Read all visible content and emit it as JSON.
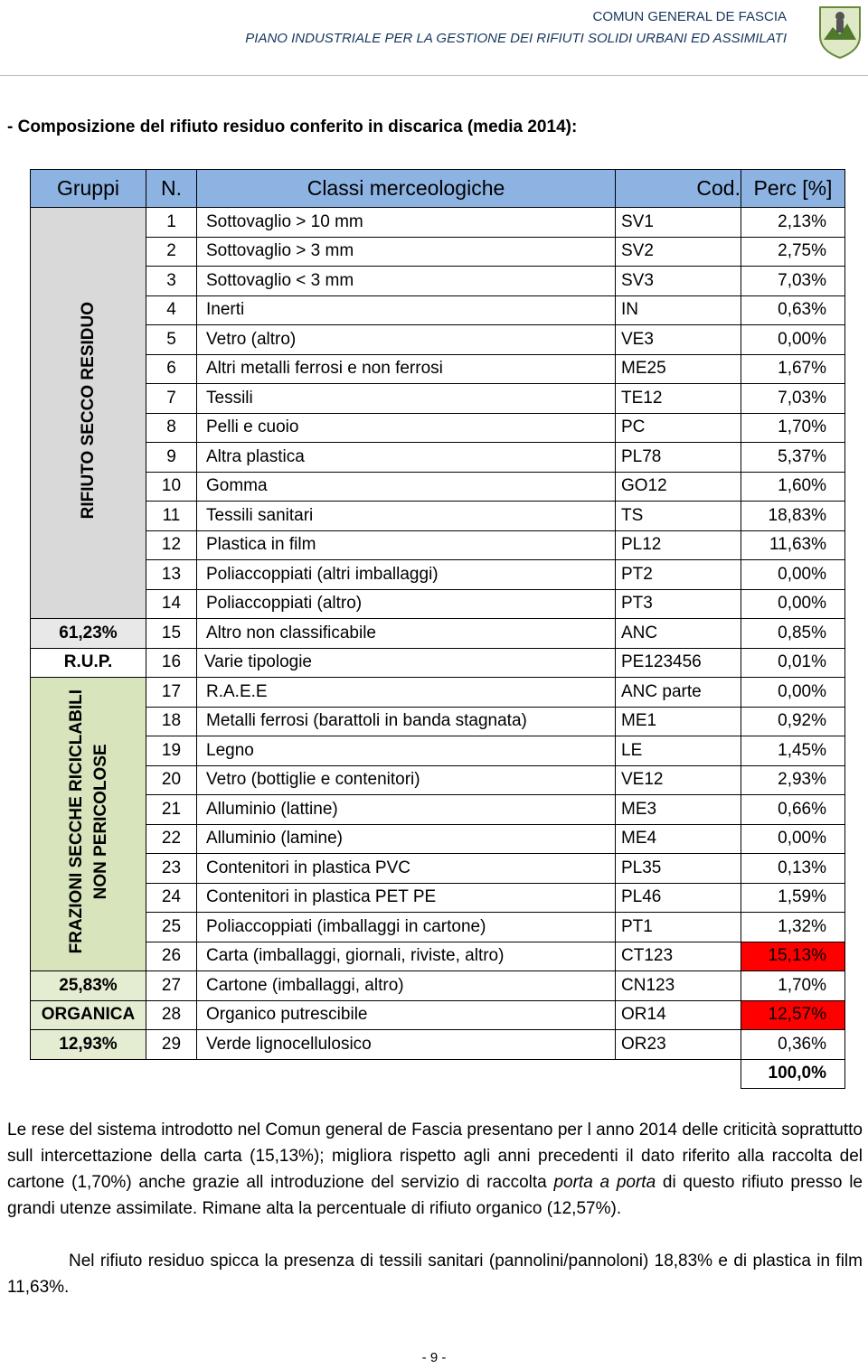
{
  "header": {
    "org": "COMUN GENERAL DE FASCIA",
    "plan": "PIANO INDUSTRIALE PER LA GESTIONE DEI RIFIUTI SOLIDI URBANI ED ASSIMILATI"
  },
  "section_title": "- Composizione del rifiuto residuo conferito in discarica (media 2014):",
  "table": {
    "columns": [
      "Gruppi",
      "N.",
      "Classi merceologiche",
      "Cod.",
      "Perc [%]"
    ],
    "groups": [
      {
        "label": [
          "RIFIUTO SECCO RESIDUO"
        ],
        "vertical": true,
        "color": "#d9d9d9",
        "rows": [
          {
            "n": "1",
            "name": "Sottovaglio > 10 mm",
            "code": "SV1",
            "perc": "2,13%"
          },
          {
            "n": "2",
            "name": "Sottovaglio > 3 mm",
            "code": "SV2",
            "perc": "2,75%"
          },
          {
            "n": "3",
            "name": "Sottovaglio < 3 mm",
            "code": "SV3",
            "perc": "7,03%"
          },
          {
            "n": "4",
            "name": "Inerti",
            "code": "IN",
            "perc": "0,63%"
          },
          {
            "n": "5",
            "name": "Vetro (altro)",
            "code": "VE3",
            "perc": "0,00%"
          },
          {
            "n": "6",
            "name": "Altri metalli ferrosi e non ferrosi",
            "code": "ME25",
            "perc": "1,67%"
          },
          {
            "n": "7",
            "name": "Tessili",
            "code": "TE12",
            "perc": "7,03%"
          },
          {
            "n": "8",
            "name": "Pelli e cuoio",
            "code": "PC",
            "perc": "1,70%"
          },
          {
            "n": "9",
            "name": "Altra plastica",
            "code": "PL78",
            "perc": "5,37%"
          },
          {
            "n": "10",
            "name": "Gomma",
            "code": "GO12",
            "perc": "1,60%"
          },
          {
            "n": "11",
            "name": "Tessili sanitari",
            "code": "TS",
            "perc": "18,83%"
          },
          {
            "n": "12",
            "name": "Plastica in film",
            "code": "PL12",
            "perc": "11,63%"
          },
          {
            "n": "13",
            "name": "Poliaccoppiati (altri imballaggi)",
            "code": "PT2",
            "perc": "0,00%"
          },
          {
            "n": "14",
            "name": "Poliaccoppiati (altro)",
            "code": "PT3",
            "perc": "0,00%"
          }
        ]
      },
      {
        "label": [
          "61,23%"
        ],
        "vertical": false,
        "color": "#e8e8e8",
        "rows": [
          {
            "n": "15",
            "name": "Altro non classificabile",
            "code": "ANC",
            "perc": "0,85%"
          }
        ]
      },
      {
        "label": [
          "R.U.P."
        ],
        "vertical": false,
        "color": "#ffffff",
        "rows": [
          {
            "n": "16",
            "name": "Varie tipologie",
            "code": "PE123456",
            "perc": "0,01%"
          }
        ]
      },
      {
        "label": [
          "FRAZIONI SECCHE RICICLABILI",
          "NON PERICOLOSE"
        ],
        "vertical": true,
        "color": "#d7e4bc",
        "rows": [
          {
            "n": "17",
            "name": "R.A.E.E",
            "code": "ANC parte",
            "perc": "0,00%"
          },
          {
            "n": "18",
            "name": "Metalli ferrosi (barattoli in banda stagnata)",
            "code": "ME1",
            "perc": "0,92%"
          },
          {
            "n": "19",
            "name": "Legno",
            "code": "LE",
            "perc": "1,45%"
          },
          {
            "n": "20",
            "name": "Vetro (bottiglie e contenitori)",
            "code": "VE12",
            "perc": "2,93%"
          },
          {
            "n": "21",
            "name": "Alluminio (lattine)",
            "code": "ME3",
            "perc": "0,66%"
          },
          {
            "n": "22",
            "name": "Alluminio (lamine)",
            "code": "ME4",
            "perc": "0,00%"
          },
          {
            "n": "23",
            "name": "Contenitori in plastica PVC",
            "code": "PL35",
            "perc": "0,13%"
          },
          {
            "n": "24",
            "name": "Contenitori in plastica PET PE",
            "code": "PL46",
            "perc": "1,59%"
          },
          {
            "n": "25",
            "name": "Poliaccoppiati (imballaggi in cartone)",
            "code": "PT1",
            "perc": "1,32%"
          },
          {
            "n": "26",
            "name": "Carta (imballaggi, giornali, riviste, altro)",
            "code": "CT123",
            "perc": "15,13%",
            "highlight": true
          }
        ]
      },
      {
        "label": [
          "25,83%"
        ],
        "vertical": false,
        "color": "#e4edd2",
        "rows": [
          {
            "n": "27",
            "name": "Cartone (imballaggi, altro)",
            "code": "CN123",
            "perc": "1,70%"
          }
        ]
      },
      {
        "label": [
          "ORGANICA"
        ],
        "vertical": false,
        "color": "#e4edd2",
        "rows": [
          {
            "n": "28",
            "name": "Organico putrescibile",
            "code": "OR14",
            "perc": "12,57%",
            "highlight": true
          }
        ]
      },
      {
        "label": [
          "12,93%"
        ],
        "vertical": false,
        "color": "#e4edd2",
        "rows": [
          {
            "n": "29",
            "name": "Verde lignocellulosico",
            "code": "OR23",
            "perc": "0,36%"
          }
        ]
      }
    ],
    "total": "100,0%"
  },
  "paragraphs": [
    [
      "Le rese del sistema introdotto nel Comun general de Fascia presentano per l anno 2014 delle criticità soprattutto sull intercettazione della carta (15,13%); migliora rispetto agli anni precedenti il dato riferito alla raccolta del cartone (1,70%) anche grazie all introduzione del servizio di raccolta ",
      "porta a porta",
      " di questo rifiuto presso le grandi utenze assimilate. Rimane alta la percentuale di rifiuto organico (12,57%)."
    ],
    [
      "Nel rifiuto residuo spicca la presenza di tessili sanitari (pannolini/pannoloni) 18,83% e di plastica in film 11,63%."
    ]
  ],
  "footer": {
    "page": "- 9 -"
  }
}
